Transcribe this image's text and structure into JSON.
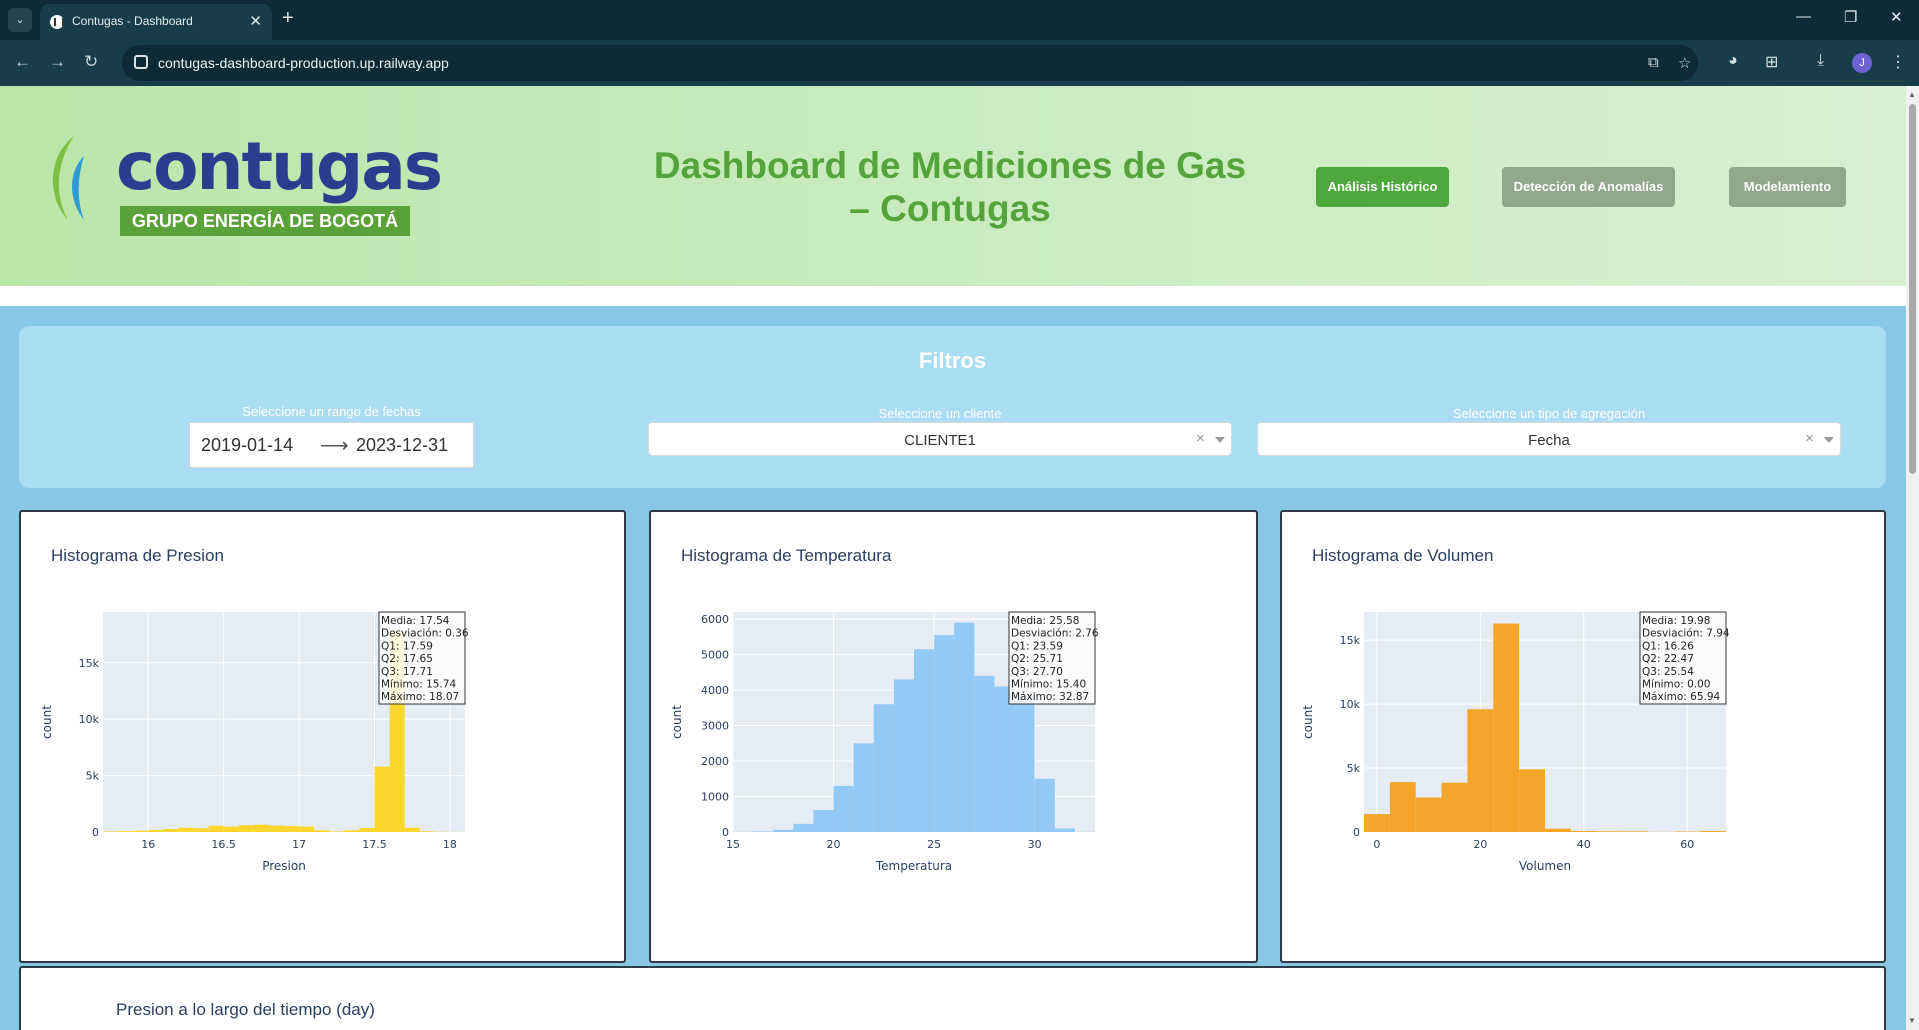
{
  "browser": {
    "tab_title": "Contugas - Dashboard",
    "url": "contugas-dashboard-production.up.railway.app",
    "profile_initial": "J"
  },
  "header": {
    "logo_word": "contugas",
    "logo_band": "GRUPO ENERGÍA DE BOGOTÁ",
    "title": "Dashboard de Mediciones de Gas – Contugas",
    "nav": [
      {
        "label": "Análisis Histórico",
        "color": "#4fa83d",
        "active": true
      },
      {
        "label": "Detección de Anomalías",
        "color": "#8fa88a",
        "active": false
      },
      {
        "label": "Modelamiento",
        "color": "#8fa88a",
        "active": false
      }
    ]
  },
  "filters": {
    "title": "Filtros",
    "date_label": "Seleccione un rango de fechas",
    "date_start": "2019-01-14",
    "date_end": "2023-12-31",
    "client_label": "Seleccione un cliente",
    "client_value": "CLIENTE1",
    "aggregation_label": "Seleccione un tipo de agregación",
    "aggregation_value": "Fecha"
  },
  "chart_data": [
    {
      "type": "bar",
      "title": "Histograma de Presion",
      "xlabel": "Presion",
      "ylabel": "count",
      "color": "#fbd72e",
      "xlim": [
        15.7,
        18.1
      ],
      "ylim": [
        0,
        19500
      ],
      "bin_width": 0.1,
      "bin_starts": [
        15.7,
        15.8,
        15.9,
        16.0,
        16.1,
        16.2,
        16.3,
        16.4,
        16.5,
        16.6,
        16.7,
        16.8,
        16.9,
        17.0,
        17.1,
        17.2,
        17.3,
        17.4,
        17.5,
        17.6,
        17.7,
        17.8,
        17.9,
        18.0
      ],
      "values": [
        50,
        80,
        120,
        180,
        260,
        380,
        330,
        550,
        480,
        600,
        650,
        560,
        520,
        480,
        150,
        50,
        150,
        350,
        5800,
        17800,
        380,
        60,
        20,
        10
      ],
      "yticks": [
        0,
        5000,
        10000,
        15000
      ],
      "ytick_labels": [
        "0",
        "5k",
        "10k",
        "15k"
      ],
      "xticks": [
        16,
        16.5,
        17,
        17.5,
        18
      ],
      "xtick_labels": [
        "16",
        "16.5",
        "17",
        "17.5",
        "18"
      ],
      "stats": [
        "Media: 17.54",
        "Desviación: 0.36",
        "Q1: 17.59",
        "Q2: 17.65",
        "Q3: 17.71",
        "Mínimo: 15.74",
        "Máximo: 18.07"
      ]
    },
    {
      "type": "bar",
      "title": "Histograma de Temperatura",
      "xlabel": "Temperatura",
      "ylabel": "count",
      "color": "#93c9f5",
      "xlim": [
        15,
        33
      ],
      "ylim": [
        0,
        6200
      ],
      "bin_width": 1,
      "bin_starts": [
        15,
        16,
        17,
        18,
        19,
        20,
        21,
        22,
        23,
        24,
        25,
        26,
        27,
        28,
        29,
        30,
        31,
        32
      ],
      "values": [
        5,
        15,
        60,
        230,
        620,
        1300,
        2500,
        3600,
        4300,
        5150,
        5550,
        5900,
        4400,
        4100,
        3800,
        1500,
        100,
        5
      ],
      "yticks": [
        0,
        1000,
        2000,
        3000,
        4000,
        5000,
        6000
      ],
      "ytick_labels": [
        "0",
        "1000",
        "2000",
        "3000",
        "4000",
        "5000",
        "6000"
      ],
      "xticks": [
        15,
        20,
        25,
        30
      ],
      "xtick_labels": [
        "15",
        "20",
        "25",
        "30"
      ],
      "stats": [
        "Media: 25.58",
        "Desviación: 2.76",
        "Q1: 23.59",
        "Q2: 25.71",
        "Q3: 27.70",
        "Mínimo: 15.40",
        "Máximo: 32.87"
      ]
    },
    {
      "type": "bar",
      "title": "Histograma de Volumen",
      "xlabel": "Volumen",
      "ylabel": "count",
      "color": "#f5a52a",
      "xlim": [
        -2.5,
        67.5
      ],
      "ylim": [
        0,
        17200
      ],
      "bin_width": 5,
      "bin_starts": [
        -2.5,
        2.5,
        7.5,
        12.5,
        17.5,
        22.5,
        27.5,
        32.5,
        37.5,
        42.5,
        47.5,
        52.5,
        57.5,
        62.5
      ],
      "values": [
        1400,
        3900,
        2700,
        3850,
        9600,
        16300,
        4900,
        260,
        80,
        60,
        50,
        10,
        40,
        80
      ],
      "yticks": [
        0,
        5000,
        10000,
        15000
      ],
      "ytick_labels": [
        "0",
        "5k",
        "10k",
        "15k"
      ],
      "xticks": [
        0,
        20,
        40,
        60
      ],
      "xtick_labels": [
        "0",
        "20",
        "40",
        "60"
      ],
      "stats": [
        "Media: 19.98",
        "Desviación: 7.94",
        "Q1: 16.26",
        "Q2: 22.47",
        "Q3: 25.54",
        "Mínimo: 0.00",
        "Máximo: 65.94"
      ]
    }
  ],
  "bottom_card": {
    "title": "Presion a lo largo del tiempo (day)"
  }
}
